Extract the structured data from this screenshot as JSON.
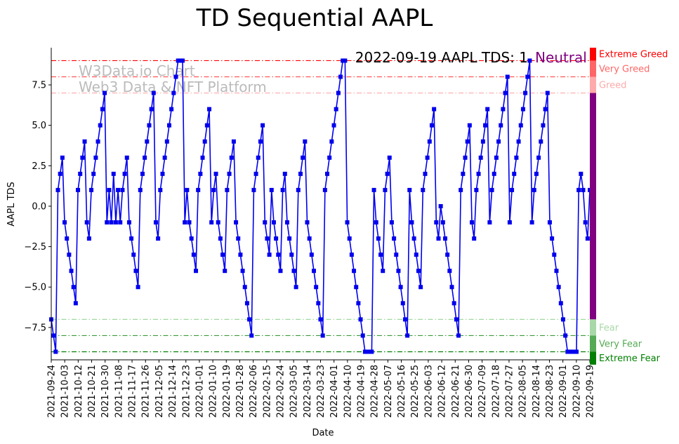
{
  "chart_data": {
    "type": "line",
    "title": "TD Sequential AAPL",
    "xlabel": "Date",
    "ylabel": "AAPL TDS",
    "ylim": [
      -9.5,
      9.8
    ],
    "xlim": [
      "2021-09-24",
      "2022-09-19"
    ],
    "yticks": [
      -7.5,
      -5.0,
      -2.5,
      0.0,
      2.5,
      5.0,
      7.5
    ],
    "ytick_labels": [
      "−7.5",
      "−5.0",
      "−2.5",
      "0.0",
      "2.5",
      "5.0",
      "7.5"
    ],
    "xticks": [
      "2021-09-24",
      "2021-10-03",
      "2021-10-12",
      "2021-10-21",
      "2021-10-30",
      "2021-11-08",
      "2021-11-17",
      "2021-11-26",
      "2021-12-05",
      "2021-12-14",
      "2021-12-23",
      "2022-01-01",
      "2022-01-10",
      "2022-01-19",
      "2022-01-28",
      "2022-02-06",
      "2022-02-15",
      "2022-02-24",
      "2022-03-05",
      "2022-03-14",
      "2022-03-23",
      "2022-04-01",
      "2022-04-10",
      "2022-04-19",
      "2022-04-28",
      "2022-05-07",
      "2022-05-16",
      "2022-05-25",
      "2022-06-03",
      "2022-06-12",
      "2022-06-21",
      "2022-06-30",
      "2022-07-09",
      "2022-07-18",
      "2022-07-27",
      "2022-08-05",
      "2022-08-14",
      "2022-08-23",
      "2022-09-01",
      "2022-09-10",
      "2022-09-19"
    ],
    "grid": false,
    "series": [
      {
        "color": "#0000ee",
        "marker": "square",
        "values": [
          -7,
          -8,
          -9,
          1,
          2,
          3,
          -1,
          -2,
          -3,
          -4,
          -5,
          -6,
          1,
          2,
          3,
          4,
          -1,
          -2,
          1,
          2,
          3,
          4,
          5,
          6,
          7,
          -1,
          1,
          -1,
          2,
          -1,
          1,
          -1,
          1,
          2,
          3,
          -1,
          -2,
          -3,
          -4,
          -5,
          1,
          2,
          3,
          4,
          5,
          6,
          7,
          -1,
          -2,
          1,
          2,
          3,
          4,
          5,
          6,
          7,
          8,
          9,
          9,
          9,
          -1,
          1,
          -1,
          -2,
          -3,
          -4,
          1,
          2,
          3,
          4,
          5,
          6,
          -1,
          1,
          2,
          -1,
          -2,
          -3,
          -4,
          1,
          2,
          3,
          4,
          -1,
          -2,
          -3,
          -4,
          -5,
          -6,
          -7,
          -8,
          1,
          2,
          3,
          4,
          5,
          -1,
          -2,
          -3,
          1,
          -1,
          -2,
          -3,
          -4,
          1,
          2,
          -1,
          -2,
          -3,
          -4,
          -5,
          1,
          2,
          3,
          4,
          -1,
          -2,
          -3,
          -4,
          -5,
          -6,
          -7,
          -8,
          1,
          2,
          3,
          4,
          5,
          6,
          7,
          8,
          9,
          9,
          -1,
          -2,
          -3,
          -4,
          -5,
          -6,
          -7,
          -8,
          -9,
          -9,
          -9,
          -9,
          1,
          -1,
          -2,
          -3,
          -4,
          1,
          2,
          3,
          -1,
          -2,
          -3,
          -4,
          -5,
          -6,
          -7,
          -8,
          1,
          -1,
          -2,
          -3,
          -4,
          -5,
          1,
          2,
          3,
          4,
          5,
          6,
          -1,
          -2,
          0,
          -1,
          -2,
          -3,
          -4,
          -5,
          -6,
          -7,
          -8,
          1,
          2,
          3,
          4,
          5,
          -1,
          -2,
          1,
          2,
          3,
          4,
          5,
          6,
          -1,
          1,
          2,
          3,
          4,
          5,
          6,
          7,
          8,
          -1,
          1,
          2,
          3,
          4,
          5,
          6,
          7,
          8,
          9,
          -1,
          1,
          2,
          3,
          4,
          5,
          6,
          7,
          -1,
          -2,
          -3,
          -4,
          -5,
          -6,
          -7,
          -8,
          -9,
          -9,
          -9,
          -9,
          -9,
          1,
          2,
          1,
          -1,
          -2,
          1
        ]
      }
    ],
    "reference_lines": [
      {
        "y": 9,
        "color": "#ff0000",
        "style": "dash-dot"
      },
      {
        "y": 8,
        "color": "#ff5555",
        "style": "dash-dot"
      },
      {
        "y": 7,
        "color": "#ffaaaa",
        "style": "dash-dot"
      },
      {
        "y": -7,
        "color": "#a0d8a0",
        "style": "dash-dot"
      },
      {
        "y": -8,
        "color": "#3a9a3a",
        "style": "dash-dot"
      },
      {
        "y": -9,
        "color": "#008000",
        "style": "dash-dot"
      }
    ],
    "sentiment_bar": [
      {
        "label": "Extreme Greed",
        "from": 9,
        "to": 9.8,
        "color": "#ff0000",
        "text_color": "#ff0000"
      },
      {
        "label": "Very Greed",
        "from": 8,
        "to": 9,
        "color": "#ff6666",
        "text_color": "#ff6666"
      },
      {
        "label": "Greed",
        "from": 7,
        "to": 8,
        "color": "#ffaaaa",
        "text_color": "#ffaaaa"
      },
      {
        "label": "",
        "from": -7,
        "to": 7,
        "color": "#800080",
        "text_color": "#800080"
      },
      {
        "label": "Fear",
        "from": -8,
        "to": -7,
        "color": "#a8d8a8",
        "text_color": "#a8d8a8"
      },
      {
        "label": "Very Fear",
        "from": -9,
        "to": -8,
        "color": "#55aa55",
        "text_color": "#55aa55"
      },
      {
        "label": "Extreme Fear",
        "from": -9.8,
        "to": -9,
        "color": "#008000",
        "text_color": "#008000"
      }
    ],
    "annotation": {
      "text": "2022-09-19 AAPL TDS: 1",
      "status": "Neutral",
      "status_color": "#800080"
    },
    "watermark": [
      "W3Data.io Chart",
      "Web3 Data & NFT Platform"
    ]
  }
}
